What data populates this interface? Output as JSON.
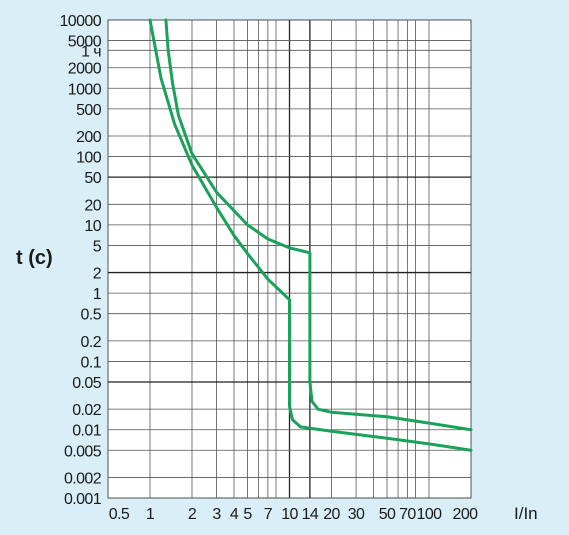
{
  "chart_data": {
    "type": "line",
    "xlabel": "I/In",
    "ylabel": "t (c)",
    "x_scale": "log",
    "y_scale": "log",
    "xlim": [
      0.5,
      200
    ],
    "ylim": [
      0.001,
      10000
    ],
    "x_ticks": [
      {
        "value": 0.5,
        "label": "0.5"
      },
      {
        "value": 1,
        "label": "1"
      },
      {
        "value": 2,
        "label": "2"
      },
      {
        "value": 3,
        "label": "3"
      },
      {
        "value": 4,
        "label": "4"
      },
      {
        "value": 5,
        "label": "5"
      },
      {
        "value": 7,
        "label": "7"
      },
      {
        "value": 10,
        "label": "10"
      },
      {
        "value": 14,
        "label": "14"
      },
      {
        "value": 20,
        "label": "20"
      },
      {
        "value": 30,
        "label": "30"
      },
      {
        "value": 50,
        "label": "50"
      },
      {
        "value": 70,
        "label": "70"
      },
      {
        "value": 100,
        "label": "100"
      },
      {
        "value": 200,
        "label": "200"
      }
    ],
    "x_gridlines": [
      0.5,
      1,
      2,
      3,
      4,
      5,
      6,
      7,
      8,
      10,
      14,
      20,
      30,
      40,
      50,
      60,
      70,
      80,
      100,
      200
    ],
    "x_major_lines": [
      10,
      14
    ],
    "y_ticks": [
      {
        "value": 10000,
        "label": "10000"
      },
      {
        "value": 5000,
        "label": "5000"
      },
      {
        "value": 3600,
        "label": "1 ч"
      },
      {
        "value": 2000,
        "label": "2000"
      },
      {
        "value": 1000,
        "label": "1000"
      },
      {
        "value": 500,
        "label": "500"
      },
      {
        "value": 200,
        "label": "200"
      },
      {
        "value": 100,
        "label": "100"
      },
      {
        "value": 50,
        "label": "50"
      },
      {
        "value": 20,
        "label": "20"
      },
      {
        "value": 10,
        "label": "10"
      },
      {
        "value": 5,
        "label": "5"
      },
      {
        "value": 2,
        "label": "2"
      },
      {
        "value": 1,
        "label": "1"
      },
      {
        "value": 0.5,
        "label": "0.5"
      },
      {
        "value": 0.2,
        "label": "0.2"
      },
      {
        "value": 0.1,
        "label": "0.1"
      },
      {
        "value": 0.05,
        "label": "0.05"
      },
      {
        "value": 0.02,
        "label": "0.02"
      },
      {
        "value": 0.01,
        "label": "0.01"
      },
      {
        "value": 0.005,
        "label": "0.005"
      },
      {
        "value": 0.002,
        "label": "0.002"
      },
      {
        "value": 0.001,
        "label": "0.001"
      }
    ],
    "y_major_lines": [
      50,
      2,
      0.05
    ],
    "grid": true,
    "colors": {
      "background": "#d9eef6",
      "plot_area": "#ffffff",
      "grid": "#555555",
      "curve": "#1aa15a",
      "text": "#1a1a1a"
    },
    "series": [
      {
        "points": [
          [
            1.0,
            10000
          ],
          [
            1.2,
            1400
          ],
          [
            1.5,
            300
          ],
          [
            2,
            75
          ],
          [
            3,
            18
          ],
          [
            4,
            7
          ],
          [
            5,
            3.8
          ],
          [
            7,
            1.6
          ],
          [
            10,
            0.8
          ],
          [
            10,
            0.022
          ],
          [
            10.5,
            0.014
          ],
          [
            12,
            0.011
          ],
          [
            14,
            0.0105
          ],
          [
            20,
            0.0095
          ],
          [
            50,
            0.0075
          ],
          [
            100,
            0.0062
          ],
          [
            200,
            0.005
          ]
        ]
      },
      {
        "points": [
          [
            1.3,
            10000
          ],
          [
            1.35,
            3600
          ],
          [
            1.45,
            1200
          ],
          [
            1.6,
            400
          ],
          [
            2,
            110
          ],
          [
            3,
            30
          ],
          [
            5,
            10
          ],
          [
            7,
            6.2
          ],
          [
            10,
            4.6
          ],
          [
            14,
            3.9
          ],
          [
            14,
            0.05
          ],
          [
            14.5,
            0.026
          ],
          [
            16,
            0.02
          ],
          [
            20,
            0.018
          ],
          [
            50,
            0.0155
          ],
          [
            100,
            0.0125
          ],
          [
            200,
            0.01
          ]
        ]
      }
    ]
  }
}
